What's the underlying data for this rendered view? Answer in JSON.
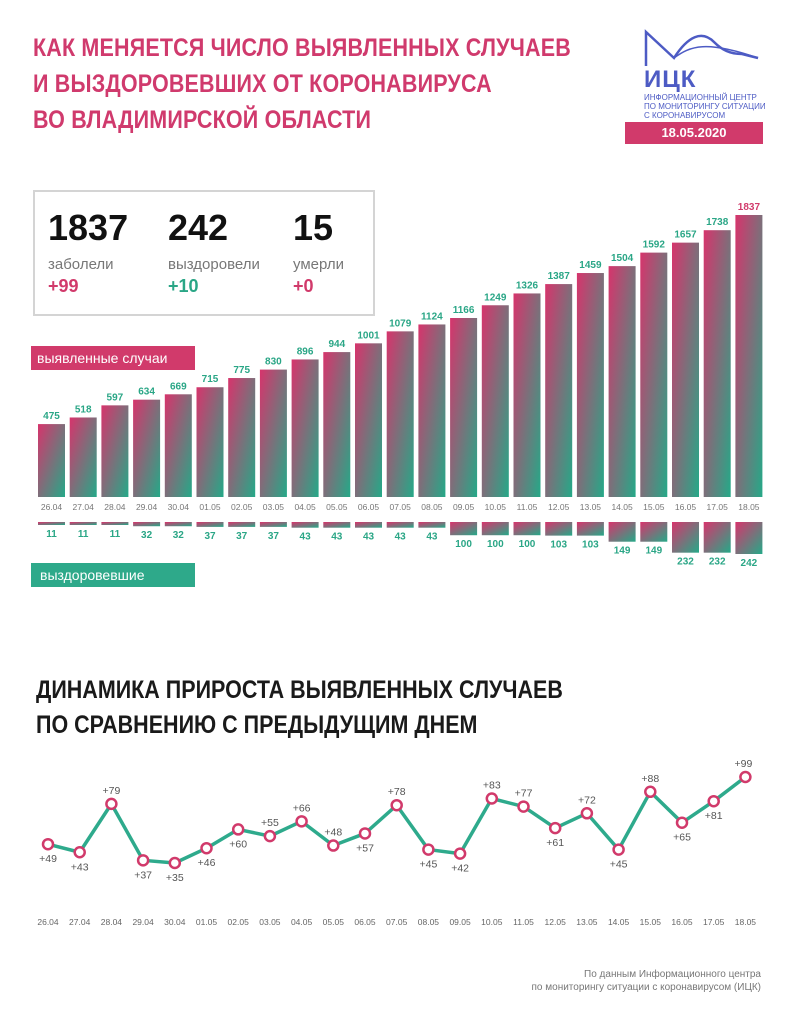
{
  "header": {
    "title_lines": [
      "КАК МЕНЯЕТСЯ ЧИСЛО ВЫЯВЛЕННЫХ СЛУЧАЕВ",
      "И ВЫЗДОРОВЕВШИХ ОТ КОРОНАВИРУСА",
      "ВО ВЛАДИМИРСКОЙ ОБЛАСТИ"
    ],
    "logo_name": "ИЦК",
    "logo_subtitle": [
      "ИНФОРМАЦИОННЫЙ ЦЕНТР",
      "ПО МОНИТОРИНГУ СИТУАЦИИ",
      "С КОРОНАВИРУСОМ"
    ],
    "date": "18.05.2020"
  },
  "summary": {
    "cases": {
      "value": "1837",
      "label": "заболели",
      "delta": "+99"
    },
    "recovered": {
      "value": "242",
      "label": "выздоровели",
      "delta": "+10"
    },
    "deaths": {
      "value": "15",
      "label": "умерли",
      "delta": "+0"
    }
  },
  "labels": {
    "cases": "выявленные случаи",
    "recovered": "выздоровевшие"
  },
  "second_title_lines": [
    "ДИНАМИКА ПРИРОСТА ВЫЯВЛЕННЫХ СЛУЧАЕВ",
    "ПО СРАВНЕНИЮ С ПРЕДЫДУЩИМ ДНЕМ"
  ],
  "source_lines": [
    "По данным Информационного центра",
    "по мониторингу ситуации с коронавирусом (ИЦК)"
  ],
  "colors": {
    "pink": "#d13a6b",
    "green": "#2aa686",
    "line": "#2eaa8c"
  },
  "chart_data": [
    {
      "type": "bar",
      "categories": [
        "26.04",
        "27.04",
        "28.04",
        "29.04",
        "30.04",
        "01.05",
        "02.05",
        "03.05",
        "04.05",
        "05.05",
        "06.05",
        "07.05",
        "08.05",
        "09.05",
        "10.05",
        "11.05",
        "12.05",
        "13.05",
        "14.05",
        "15.05",
        "16.05",
        "17.05",
        "18.05"
      ],
      "series": [
        {
          "name": "выявленные случаи",
          "values": [
            475,
            518,
            597,
            634,
            669,
            715,
            775,
            830,
            896,
            944,
            1001,
            1079,
            1124,
            1166,
            1249,
            1326,
            1387,
            1459,
            1504,
            1592,
            1657,
            1738,
            1837
          ]
        },
        {
          "name": "выздоровевшие",
          "values": [
            11,
            11,
            11,
            32,
            32,
            37,
            37,
            37,
            43,
            43,
            43,
            43,
            43,
            100,
            100,
            100,
            103,
            103,
            149,
            149,
            232,
            232,
            242
          ]
        }
      ]
    },
    {
      "type": "line",
      "categories": [
        "26.04",
        "27.04",
        "28.04",
        "29.04",
        "30.04",
        "01.05",
        "02.05",
        "03.05",
        "04.05",
        "05.05",
        "06.05",
        "07.05",
        "08.05",
        "09.05",
        "10.05",
        "11.05",
        "12.05",
        "13.05",
        "14.05",
        "15.05",
        "16.05",
        "17.05",
        "18.05"
      ],
      "values": [
        49,
        43,
        79,
        37,
        35,
        46,
        60,
        55,
        66,
        48,
        57,
        78,
        45,
        42,
        83,
        77,
        61,
        72,
        45,
        88,
        65,
        81,
        99
      ],
      "point_labels": [
        "+49",
        "+43",
        "+79",
        "+37",
        "+35",
        "+46",
        "+60",
        "+55",
        "+66",
        "+48",
        "+57",
        "+78",
        "+45",
        "+42",
        "+83",
        "+77",
        "+61",
        "+72",
        "+45",
        "+88",
        "+65",
        "+81",
        "+99"
      ]
    }
  ]
}
